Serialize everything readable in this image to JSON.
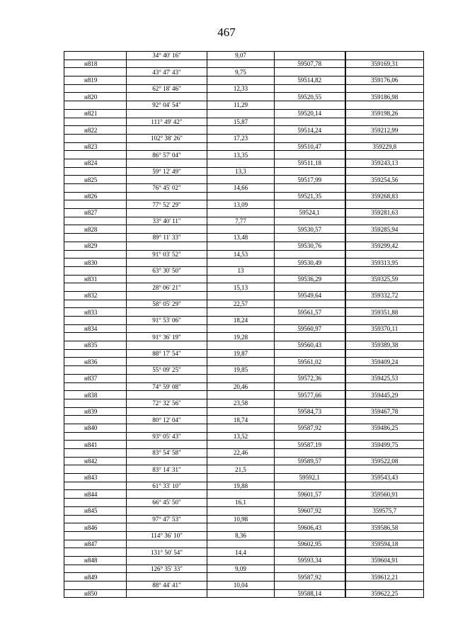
{
  "page_number": "467",
  "rows": [
    [
      "",
      "34° 40' 16\"",
      "9,07",
      "",
      ""
    ],
    [
      "н818",
      "",
      "",
      "59507,78",
      "359169,31"
    ],
    [
      "",
      "43° 47' 43\"",
      "9,75",
      "",
      ""
    ],
    [
      "н819",
      "",
      "",
      "59514,82",
      "359176,06"
    ],
    [
      "",
      "62° 18' 46\"",
      "12,33",
      "",
      ""
    ],
    [
      "н820",
      "",
      "",
      "59520,55",
      "359186,98"
    ],
    [
      "",
      "92° 04' 54\"",
      "11,29",
      "",
      ""
    ],
    [
      "н821",
      "",
      "",
      "59520,14",
      "359198,26"
    ],
    [
      "",
      "111° 49' 42\"",
      "15,87",
      "",
      ""
    ],
    [
      "н822",
      "",
      "",
      "59514,24",
      "359212,99"
    ],
    [
      "",
      "102° 38' 26\"",
      "17,23",
      "",
      ""
    ],
    [
      "н823",
      "",
      "",
      "59510,47",
      "359229,8"
    ],
    [
      "",
      "86° 57' 04\"",
      "13,35",
      "",
      ""
    ],
    [
      "н824",
      "",
      "",
      "59511,18",
      "359243,13"
    ],
    [
      "",
      "59° 12' 49\"",
      "13,3",
      "",
      ""
    ],
    [
      "н825",
      "",
      "",
      "59517,99",
      "359254,56"
    ],
    [
      "",
      "76° 45' 02\"",
      "14,66",
      "",
      ""
    ],
    [
      "н826",
      "",
      "",
      "59521,35",
      "359268,83"
    ],
    [
      "",
      "77° 52' 29\"",
      "13,09",
      "",
      ""
    ],
    [
      "н827",
      "",
      "",
      "59524,1",
      "359281,63"
    ],
    [
      "",
      "33° 40' 11\"",
      "7,77",
      "",
      ""
    ],
    [
      "н828",
      "",
      "",
      "59530,57",
      "359285,94"
    ],
    [
      "",
      "89° 11' 33\"",
      "13,48",
      "",
      ""
    ],
    [
      "н829",
      "",
      "",
      "59530,76",
      "359299,42"
    ],
    [
      "",
      "91° 03' 52\"",
      "14,53",
      "",
      ""
    ],
    [
      "н830",
      "",
      "",
      "59530,49",
      "359313,95"
    ],
    [
      "",
      "63° 30' 50\"",
      "13",
      "",
      ""
    ],
    [
      "н831",
      "",
      "",
      "59536,29",
      "359325,59"
    ],
    [
      "",
      "28° 06' 21\"",
      "15,13",
      "",
      ""
    ],
    [
      "н832",
      "",
      "",
      "59549,64",
      "359332,72"
    ],
    [
      "",
      "58° 05' 29\"",
      "22,57",
      "",
      ""
    ],
    [
      "н833",
      "",
      "",
      "59561,57",
      "359351,88"
    ],
    [
      "",
      "91° 53' 06\"",
      "18,24",
      "",
      ""
    ],
    [
      "н834",
      "",
      "",
      "59560,97",
      "359370,11"
    ],
    [
      "",
      "91° 36' 19\"",
      "19,28",
      "",
      ""
    ],
    [
      "н835",
      "",
      "",
      "59560,43",
      "359389,38"
    ],
    [
      "",
      "88° 17' 54\"",
      "19,87",
      "",
      ""
    ],
    [
      "н836",
      "",
      "",
      "59561,02",
      "359409,24"
    ],
    [
      "",
      "55° 09' 25\"",
      "19,85",
      "",
      ""
    ],
    [
      "н837",
      "",
      "",
      "59572,36",
      "359425,53"
    ],
    [
      "",
      "74° 59' 08\"",
      "20,46",
      "",
      ""
    ],
    [
      "н838",
      "",
      "",
      "59577,66",
      "359445,29"
    ],
    [
      "",
      "72° 32' 56\"",
      "23,58",
      "",
      ""
    ],
    [
      "н839",
      "",
      "",
      "59584,73",
      "359467,78"
    ],
    [
      "",
      "80° 12' 04\"",
      "18,74",
      "",
      ""
    ],
    [
      "н840",
      "",
      "",
      "59587,92",
      "359486,25"
    ],
    [
      "",
      "93° 05' 43\"",
      "13,52",
      "",
      ""
    ],
    [
      "н841",
      "",
      "",
      "59587,19",
      "359499,75"
    ],
    [
      "",
      "83° 54' 58\"",
      "22,46",
      "",
      ""
    ],
    [
      "н842",
      "",
      "",
      "59589,57",
      "359522,08"
    ],
    [
      "",
      "83° 14' 31\"",
      "21,5",
      "",
      ""
    ],
    [
      "н843",
      "",
      "",
      "59592,1",
      "359543,43"
    ],
    [
      "",
      "61° 33' 10\"",
      "19,88",
      "",
      ""
    ],
    [
      "н844",
      "",
      "",
      "59601,57",
      "359560,91"
    ],
    [
      "",
      "66° 45' 50\"",
      "16,1",
      "",
      ""
    ],
    [
      "н845",
      "",
      "",
      "59607,92",
      "359575,7"
    ],
    [
      "",
      "97° 47' 53\"",
      "10,98",
      "",
      ""
    ],
    [
      "н846",
      "",
      "",
      "59606,43",
      "359586,58"
    ],
    [
      "",
      "114° 36' 10\"",
      "8,36",
      "",
      ""
    ],
    [
      "н847",
      "",
      "",
      "59602,95",
      "359594,18"
    ],
    [
      "",
      "131° 50' 54\"",
      "14,4",
      "",
      ""
    ],
    [
      "н848",
      "",
      "",
      "59593,34",
      "359604,91"
    ],
    [
      "",
      "126° 35' 33\"",
      "9,09",
      "",
      ""
    ],
    [
      "н849",
      "",
      "",
      "59587,92",
      "359612,21"
    ],
    [
      "",
      "88° 44' 41\"",
      "10,04",
      "",
      ""
    ],
    [
      "н850",
      "",
      "",
      "59588,14",
      "359622,25"
    ]
  ]
}
